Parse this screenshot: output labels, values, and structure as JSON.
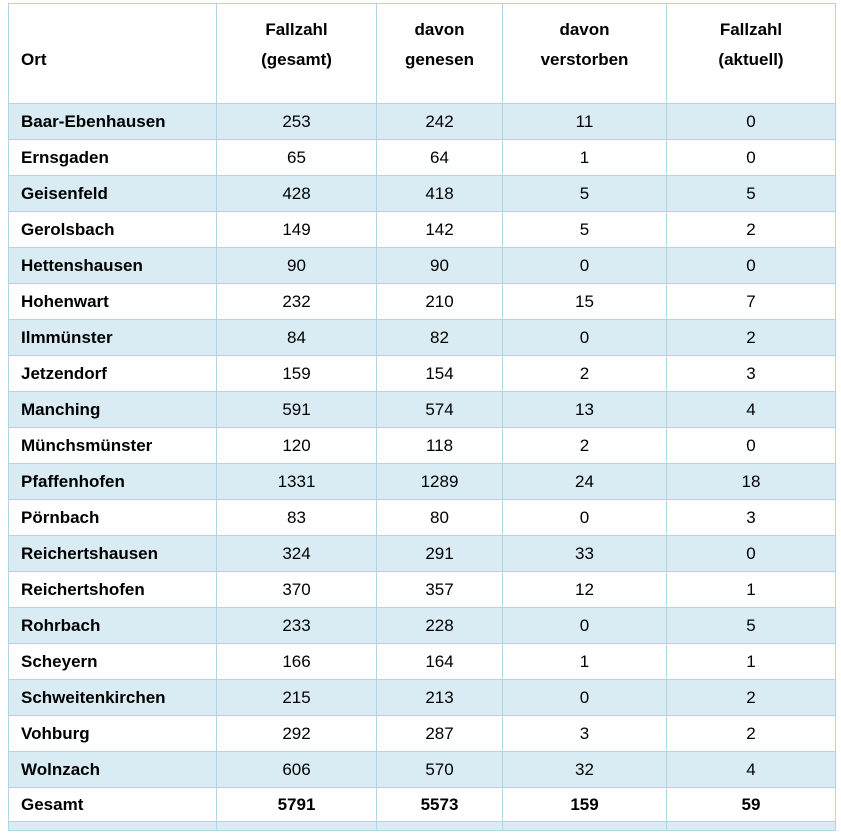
{
  "table": {
    "header": [
      {
        "id": "ort",
        "lines": [
          "Ort"
        ]
      },
      {
        "id": "gesamt",
        "lines": [
          "Fallzahl",
          "(gesamt)"
        ]
      },
      {
        "id": "genesen",
        "lines": [
          "davon",
          "genesen"
        ]
      },
      {
        "id": "verstorben",
        "lines": [
          "davon",
          "verstorben"
        ]
      },
      {
        "id": "aktuell",
        "lines": [
          "Fallzahl",
          "(aktuell)"
        ]
      }
    ],
    "rows": [
      {
        "ort": "Baar-Ebenhausen",
        "values": [
          "253",
          "242",
          "11",
          "0"
        ]
      },
      {
        "ort": "Ernsgaden",
        "values": [
          "65",
          "64",
          "1",
          "0"
        ]
      },
      {
        "ort": "Geisenfeld",
        "values": [
          "428",
          "418",
          "5",
          "5"
        ]
      },
      {
        "ort": "Gerolsbach",
        "values": [
          "149",
          "142",
          "5",
          "2"
        ]
      },
      {
        "ort": "Hettenshausen",
        "values": [
          "90",
          "90",
          "0",
          "0"
        ]
      },
      {
        "ort": "Hohenwart",
        "values": [
          "232",
          "210",
          "15",
          "7"
        ]
      },
      {
        "ort": "Ilmmünster",
        "values": [
          "84",
          "82",
          "0",
          "2"
        ]
      },
      {
        "ort": "Jetzendorf",
        "values": [
          "159",
          "154",
          "2",
          "3"
        ]
      },
      {
        "ort": "Manching",
        "values": [
          "591",
          "574",
          "13",
          "4"
        ]
      },
      {
        "ort": "Münchsmünster",
        "values": [
          "120",
          "118",
          "2",
          "0"
        ]
      },
      {
        "ort": "Pfaffenhofen",
        "values": [
          "1331",
          "1289",
          "24",
          "18"
        ]
      },
      {
        "ort": "Pörnbach",
        "values": [
          "83",
          "80",
          "0",
          "3"
        ]
      },
      {
        "ort": "Reichertshausen",
        "values": [
          "324",
          "291",
          "33",
          "0"
        ]
      },
      {
        "ort": "Reichertshofen",
        "values": [
          "370",
          "357",
          "12",
          "1"
        ]
      },
      {
        "ort": "Rohrbach",
        "values": [
          "233",
          "228",
          "0",
          "5"
        ]
      },
      {
        "ort": "Scheyern",
        "values": [
          "166",
          "164",
          "1",
          "1"
        ]
      },
      {
        "ort": "Schweitenkirchen",
        "values": [
          "215",
          "213",
          "0",
          "2"
        ]
      },
      {
        "ort": "Vohburg",
        "values": [
          "292",
          "287",
          "3",
          "2"
        ]
      },
      {
        "ort": "Wolnzach",
        "values": [
          "606",
          "570",
          "32",
          "4"
        ]
      }
    ],
    "total": {
      "ort": "Gesamt",
      "values": [
        "5791",
        "5573",
        "159",
        "59"
      ]
    }
  },
  "colors": {
    "row_highlight": "#d9ecf4",
    "border": "#aed6e4"
  }
}
